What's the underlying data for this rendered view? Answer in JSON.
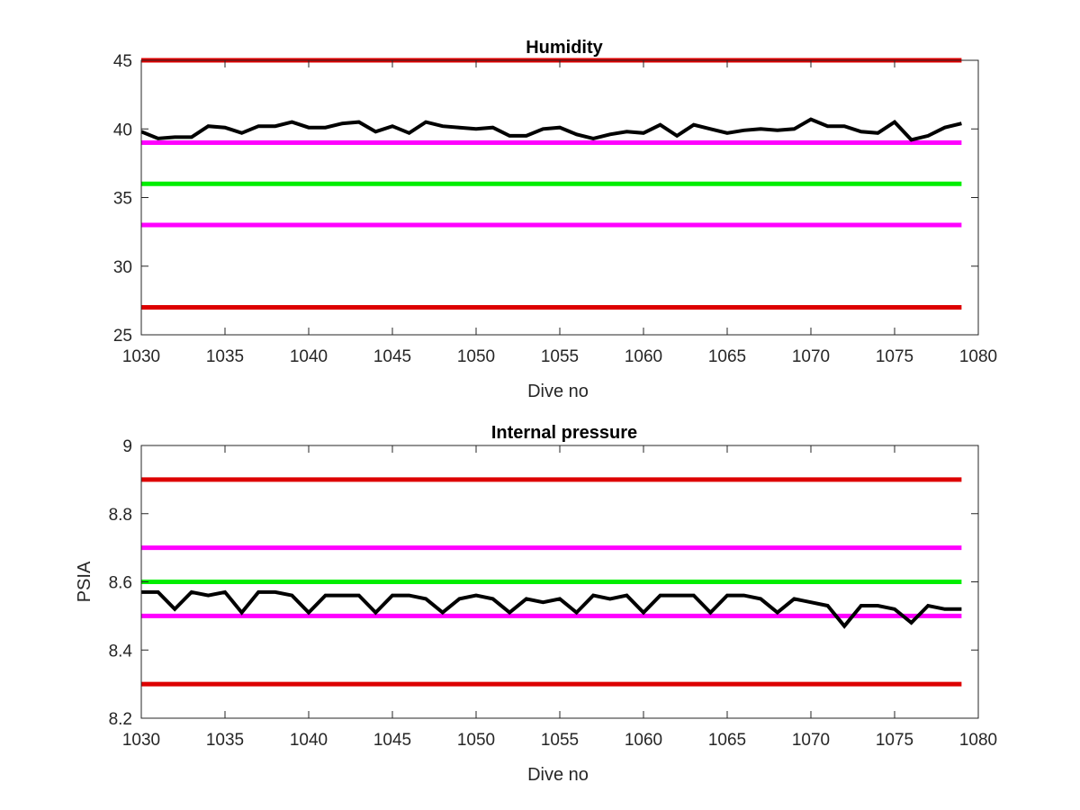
{
  "chart_data": [
    {
      "type": "line",
      "title": "Humidity",
      "xlabel": "Dive no",
      "ylabel": "",
      "xlim": [
        1030,
        1080
      ],
      "ylim": [
        25,
        45
      ],
      "xticks": [
        "1030",
        "1035",
        "1040",
        "1045",
        "1050",
        "1055",
        "1060",
        "1065",
        "1070",
        "1075",
        "1080"
      ],
      "yticks": [
        "25",
        "30",
        "35",
        "40",
        "45"
      ],
      "grid": false,
      "threshold_lines": [
        {
          "y": 45,
          "color": "#dd0000"
        },
        {
          "y": 39,
          "color": "#ff00ff"
        },
        {
          "y": 36,
          "color": "#00ee00"
        },
        {
          "y": 33,
          "color": "#ff00ff"
        },
        {
          "y": 27,
          "color": "#dd0000"
        }
      ],
      "series": [
        {
          "color": "#000000",
          "x": [
            1030,
            1031,
            1032,
            1033,
            1034,
            1035,
            1036,
            1037,
            1038,
            1039,
            1040,
            1041,
            1042,
            1043,
            1044,
            1045,
            1046,
            1047,
            1048,
            1049,
            1050,
            1051,
            1052,
            1053,
            1054,
            1055,
            1056,
            1057,
            1058,
            1059,
            1060,
            1061,
            1062,
            1063,
            1064,
            1065,
            1066,
            1067,
            1068,
            1069,
            1070,
            1071,
            1072,
            1073,
            1074,
            1075,
            1076,
            1077,
            1078,
            1079
          ],
          "y": [
            39.8,
            39.3,
            39.4,
            39.4,
            40.2,
            40.1,
            39.7,
            40.2,
            40.2,
            40.5,
            40.1,
            40.1,
            40.4,
            40.5,
            39.8,
            40.2,
            39.7,
            40.5,
            40.2,
            40.1,
            40.0,
            40.1,
            39.5,
            39.5,
            40.0,
            40.1,
            39.6,
            39.3,
            39.6,
            39.8,
            39.7,
            40.3,
            39.5,
            40.3,
            40.0,
            39.7,
            39.9,
            40.0,
            39.9,
            40.0,
            40.7,
            40.2,
            40.2,
            39.8,
            39.7,
            40.5,
            39.2,
            39.5,
            40.1,
            40.4
          ]
        }
      ]
    },
    {
      "type": "line",
      "title": "Internal pressure",
      "xlabel": "Dive no",
      "ylabel": "PSIA",
      "xlim": [
        1030,
        1080
      ],
      "ylim": [
        8.2,
        9.0
      ],
      "xticks": [
        "1030",
        "1035",
        "1040",
        "1045",
        "1050",
        "1055",
        "1060",
        "1065",
        "1070",
        "1075",
        "1080"
      ],
      "yticks": [
        "8.2",
        "8.4",
        "8.6",
        "8.8",
        "9"
      ],
      "grid": false,
      "threshold_lines": [
        {
          "y": 8.9,
          "color": "#dd0000"
        },
        {
          "y": 8.7,
          "color": "#ff00ff"
        },
        {
          "y": 8.6,
          "color": "#00ee00"
        },
        {
          "y": 8.5,
          "color": "#ff00ff"
        },
        {
          "y": 8.3,
          "color": "#dd0000"
        }
      ],
      "series": [
        {
          "color": "#000000",
          "x": [
            1030,
            1031,
            1032,
            1033,
            1034,
            1035,
            1036,
            1037,
            1038,
            1039,
            1040,
            1041,
            1042,
            1043,
            1044,
            1045,
            1046,
            1047,
            1048,
            1049,
            1050,
            1051,
            1052,
            1053,
            1054,
            1055,
            1056,
            1057,
            1058,
            1059,
            1060,
            1061,
            1062,
            1063,
            1064,
            1065,
            1066,
            1067,
            1068,
            1069,
            1070,
            1071,
            1072,
            1073,
            1074,
            1075,
            1076,
            1077,
            1078,
            1079
          ],
          "y": [
            8.57,
            8.57,
            8.52,
            8.57,
            8.56,
            8.57,
            8.51,
            8.57,
            8.57,
            8.56,
            8.51,
            8.56,
            8.56,
            8.56,
            8.51,
            8.56,
            8.56,
            8.55,
            8.51,
            8.55,
            8.56,
            8.55,
            8.51,
            8.55,
            8.54,
            8.55,
            8.51,
            8.56,
            8.55,
            8.56,
            8.51,
            8.56,
            8.56,
            8.56,
            8.51,
            8.56,
            8.56,
            8.55,
            8.51,
            8.55,
            8.54,
            8.53,
            8.47,
            8.53,
            8.53,
            8.52,
            8.48,
            8.53,
            8.52,
            8.52
          ]
        }
      ]
    }
  ]
}
